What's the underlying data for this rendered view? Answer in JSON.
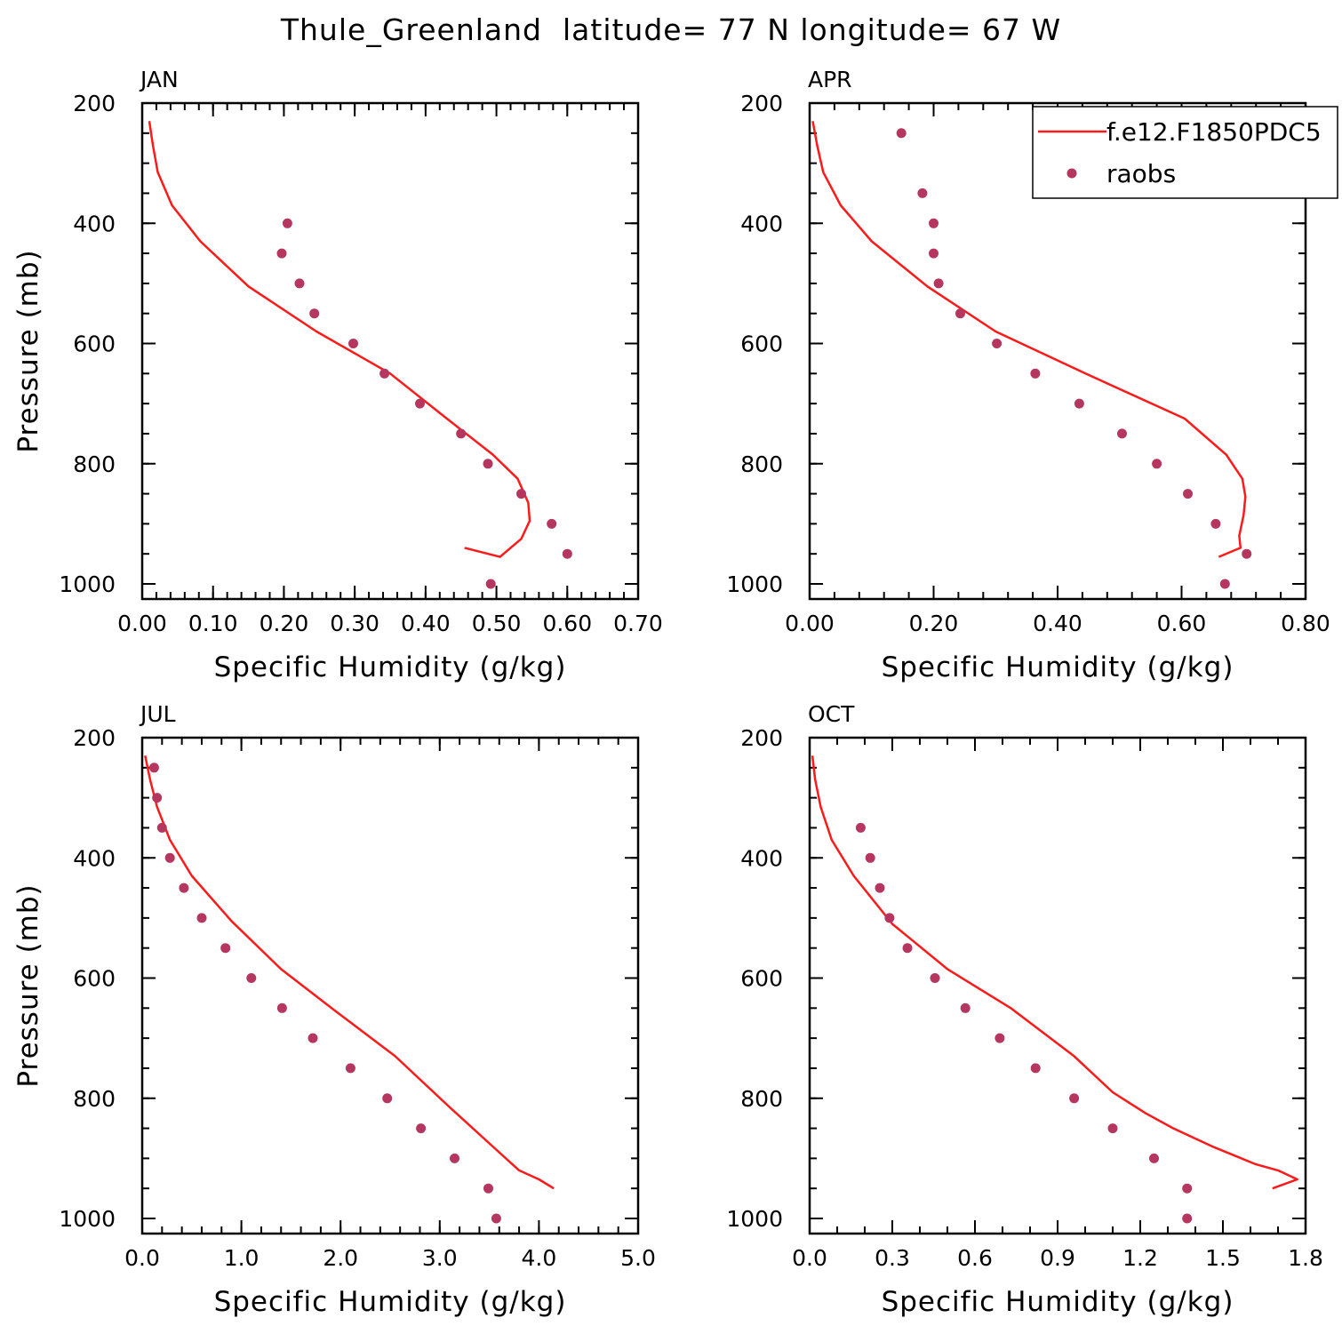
{
  "title": "Thule_Greenland  latitude= 77 N longitude= 67 W",
  "colors": {
    "model": "#ff1a1a",
    "obs": "#b5365f"
  },
  "legend": {
    "position": "top-right of APR panel",
    "entries": [
      {
        "label": "f.e12.F1850PDC5",
        "kind": "line"
      },
      {
        "label": "raobs",
        "kind": "marker"
      }
    ]
  },
  "chart_data": [
    {
      "type": "line",
      "panel": "JAN",
      "xlabel": "Specific Humidity (g/kg)",
      "ylabel": "Pressure (mb)",
      "xlim": [
        0,
        0.7
      ],
      "ylim": [
        1000,
        200
      ],
      "y_reversed": true,
      "xticks": [
        0,
        0.1,
        0.2,
        0.3,
        0.4,
        0.5,
        0.6,
        0.7
      ],
      "xtick_labels": [
        "0.00",
        "0.10",
        "0.20",
        "0.30",
        "0.40",
        "0.50",
        "0.60",
        "0.70"
      ],
      "yticks": [
        200,
        400,
        600,
        800,
        1000
      ],
      "ytick_labels": [
        "200",
        "400",
        "600",
        "800",
        "1000"
      ],
      "x_minor": 0.02,
      "y_minor": 50,
      "series": [
        {
          "name": "f.e12.F1850PDC5",
          "style": "line",
          "x": [
            0.01,
            0.015,
            0.022,
            0.042,
            0.082,
            0.15,
            0.246,
            0.35,
            0.43,
            0.495,
            0.53,
            0.545,
            0.547,
            0.535,
            0.505,
            0.455
          ],
          "y": [
            230,
            270,
            315,
            370,
            430,
            505,
            580,
            650,
            725,
            785,
            825,
            865,
            895,
            925,
            955,
            940
          ]
        },
        {
          "name": "raobs",
          "style": "marker",
          "x": [
            0.205,
            0.197,
            0.222,
            0.243,
            0.298,
            0.342,
            0.392,
            0.45,
            0.488,
            0.535,
            0.578,
            0.6,
            0.492
          ],
          "y": [
            400,
            450,
            500,
            550,
            600,
            650,
            700,
            750,
            800,
            850,
            900,
            950,
            1000
          ]
        }
      ]
    },
    {
      "type": "line",
      "panel": "APR",
      "xlabel": "Specific Humidity (g/kg)",
      "ylabel": "",
      "xlim": [
        0,
        0.8
      ],
      "ylim": [
        1000,
        200
      ],
      "y_reversed": true,
      "xticks": [
        0,
        0.2,
        0.4,
        0.6,
        0.8
      ],
      "xtick_labels": [
        "0.00",
        "0.20",
        "0.40",
        "0.60",
        "0.80"
      ],
      "yticks": [
        200,
        400,
        600,
        800,
        1000
      ],
      "ytick_labels": [
        "200",
        "400",
        "600",
        "800",
        "1000"
      ],
      "x_minor": 0.04,
      "y_minor": 50,
      "series": [
        {
          "name": "f.e12.F1850PDC5",
          "style": "line",
          "x": [
            0.005,
            0.012,
            0.022,
            0.05,
            0.1,
            0.19,
            0.3,
            0.445,
            0.605,
            0.672,
            0.698,
            0.703,
            0.7,
            0.693,
            0.695,
            0.66
          ],
          "y": [
            230,
            270,
            315,
            370,
            430,
            505,
            580,
            650,
            725,
            785,
            825,
            855,
            885,
            920,
            940,
            955
          ]
        },
        {
          "name": "raobs",
          "style": "marker",
          "x": [
            0.148,
            0.182,
            0.2,
            0.2,
            0.208,
            0.243,
            0.302,
            0.364,
            0.435,
            0.504,
            0.56,
            0.61,
            0.655,
            0.705,
            0.67
          ],
          "y": [
            250,
            350,
            400,
            450,
            500,
            550,
            600,
            650,
            700,
            750,
            800,
            850,
            900,
            950,
            1000
          ]
        }
      ]
    },
    {
      "type": "line",
      "panel": "JUL",
      "xlabel": "Specific Humidity (g/kg)",
      "ylabel": "Pressure (mb)",
      "xlim": [
        0,
        5
      ],
      "ylim": [
        1000,
        200
      ],
      "y_reversed": true,
      "xticks": [
        0,
        1,
        2,
        3,
        4,
        5
      ],
      "xtick_labels": [
        "0.0",
        "1.0",
        "2.0",
        "3.0",
        "4.0",
        "5.0"
      ],
      "yticks": [
        200,
        400,
        600,
        800,
        1000
      ],
      "ytick_labels": [
        "200",
        "400",
        "600",
        "800",
        "1000"
      ],
      "x_minor": 0.2,
      "y_minor": 50,
      "series": [
        {
          "name": "f.e12.F1850PDC5",
          "style": "line",
          "x": [
            0.03,
            0.08,
            0.15,
            0.28,
            0.5,
            0.9,
            1.4,
            1.95,
            2.55,
            3.1,
            3.5,
            3.8,
            4.0,
            4.15
          ],
          "y": [
            230,
            270,
            315,
            370,
            430,
            505,
            585,
            655,
            730,
            815,
            875,
            920,
            935,
            950
          ]
        },
        {
          "name": "raobs",
          "style": "marker",
          "x": [
            0.12,
            0.15,
            0.2,
            0.28,
            0.42,
            0.6,
            0.84,
            1.1,
            1.41,
            1.72,
            2.1,
            2.47,
            2.81,
            3.15,
            3.49,
            3.57
          ],
          "y": [
            250,
            300,
            350,
            400,
            450,
            500,
            550,
            600,
            650,
            700,
            750,
            800,
            850,
            900,
            950,
            1000
          ]
        }
      ]
    },
    {
      "type": "line",
      "panel": "OCT",
      "xlabel": "Specific Humidity (g/kg)",
      "ylabel": "",
      "xlim": [
        0,
        1.8
      ],
      "ylim": [
        1000,
        200
      ],
      "y_reversed": true,
      "xticks": [
        0,
        0.3,
        0.6,
        0.9,
        1.2,
        1.5,
        1.8
      ],
      "xtick_labels": [
        "0.0",
        "0.3",
        "0.6",
        "0.9",
        "1.2",
        "1.5",
        "1.8"
      ],
      "yticks": [
        200,
        400,
        600,
        800,
        1000
      ],
      "ytick_labels": [
        "200",
        "400",
        "600",
        "800",
        "1000"
      ],
      "x_minor": 0.1,
      "y_minor": 50,
      "series": [
        {
          "name": "f.e12.F1850PDC5",
          "style": "line",
          "x": [
            0.01,
            0.02,
            0.04,
            0.08,
            0.16,
            0.3,
            0.5,
            0.73,
            0.96,
            1.1,
            1.22,
            1.32,
            1.46,
            1.62,
            1.7,
            1.77,
            1.68
          ],
          "y": [
            230,
            270,
            315,
            370,
            430,
            510,
            585,
            650,
            730,
            790,
            825,
            850,
            880,
            910,
            920,
            935,
            950
          ]
        },
        {
          "name": "raobs",
          "style": "marker",
          "x": [
            0.185,
            0.22,
            0.255,
            0.29,
            0.355,
            0.455,
            0.565,
            0.69,
            0.82,
            0.96,
            1.1,
            1.25,
            1.37,
            1.37
          ],
          "y": [
            350,
            400,
            450,
            500,
            550,
            600,
            650,
            700,
            750,
            800,
            850,
            900,
            950,
            1000
          ]
        }
      ]
    }
  ]
}
